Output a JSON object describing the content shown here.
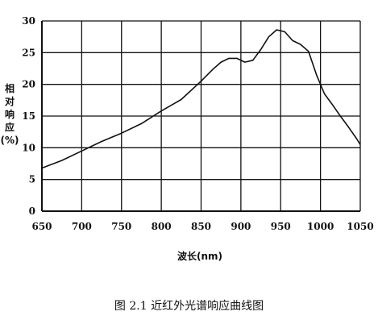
{
  "chart_data": {
    "type": "line",
    "title": "",
    "xlabel": "波长(nm)",
    "ylabel": "相对响应(%)",
    "xlim": [
      650,
      1050
    ],
    "ylim": [
      0,
      30
    ],
    "x_ticks": [
      650,
      700,
      750,
      800,
      850,
      900,
      950,
      1000,
      1050
    ],
    "y_ticks": [
      0,
      5,
      10,
      15,
      20,
      25,
      30
    ],
    "grid": true,
    "legend": "none",
    "series": [
      {
        "x": [
          650,
          675,
          700,
          725,
          750,
          775,
          800,
          825,
          850,
          865,
          875,
          885,
          895,
          905,
          915,
          925,
          935,
          945,
          955,
          965,
          975,
          985,
          995,
          1005,
          1015,
          1025,
          1035,
          1045,
          1050
        ],
        "y": [
          6.8,
          8.0,
          9.5,
          11.0,
          12.3,
          13.8,
          15.8,
          17.6,
          20.5,
          22.4,
          23.5,
          24.1,
          24.1,
          23.5,
          23.8,
          25.5,
          27.5,
          28.6,
          28.3,
          26.9,
          26.3,
          25.2,
          21.5,
          18.5,
          16.8,
          15.0,
          13.3,
          11.5,
          10.5
        ]
      }
    ]
  },
  "caption": "图 2.1  近红外光谱响应曲线图"
}
